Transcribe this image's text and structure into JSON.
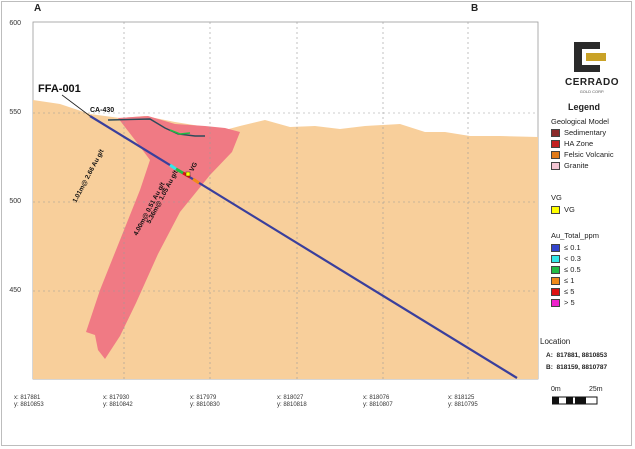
{
  "section": {
    "start_label": "A",
    "end_label": "B"
  },
  "y_axis": {
    "ticks": [
      "600",
      "550",
      "500",
      "450"
    ]
  },
  "x_axis": {
    "ticks": [
      {
        "x": "x: 817881",
        "y": "y: 8810853"
      },
      {
        "x": "x: 817930",
        "y": "y: 8810842"
      },
      {
        "x": "x: 817979",
        "y": "y: 8810830"
      },
      {
        "x": "x: 818027",
        "y": "y: 8810818"
      },
      {
        "x": "x: 818076",
        "y": "y: 8810807"
      },
      {
        "x": "x: 818125",
        "y": "y: 8810795"
      }
    ]
  },
  "drillhole": {
    "id": "FFA-001",
    "collar_label": "CA-430",
    "intercepts": [
      "1.01m@ 2.66 Au g/t",
      "4.00m@ 0.51 Au g/t",
      "5.36m@ 1.05 Au g/t"
    ],
    "vg_label": "VG"
  },
  "brand": {
    "name": "CERRADO",
    "subtitle": "GOLD CORP."
  },
  "legend": {
    "title": "Legend",
    "geological_model": {
      "title": "Geological Model",
      "items": [
        {
          "label": "Sedimentary",
          "color": "#8b2a2a"
        },
        {
          "label": "HA Zone",
          "color": "#c21f1f"
        },
        {
          "label": "Felsic Volcanic",
          "color": "#e07a1a"
        },
        {
          "label": "Granite",
          "color": "#f4c6d4"
        }
      ]
    },
    "vg": {
      "title": "VG",
      "items": [
        {
          "label": "VG",
          "color": "#ffff00"
        }
      ]
    },
    "au_total": {
      "title": "Au_Total_ppm",
      "items": [
        {
          "label": "≤ 0.1",
          "color": "#3344cc"
        },
        {
          "label": "< 0.3",
          "color": "#33e8e8"
        },
        {
          "label": "≤ 0.5",
          "color": "#22bb44"
        },
        {
          "label": "≤ 1",
          "color": "#f08a1a"
        },
        {
          "label": "≤ 5",
          "color": "#dd1111"
        },
        {
          "label": "> 5",
          "color": "#ee22cc"
        }
      ]
    }
  },
  "location": {
    "title": "Location",
    "rows": [
      {
        "key": "A:",
        "value": "817881, 8810853"
      },
      {
        "key": "B:",
        "value": "818159, 8810787"
      }
    ]
  },
  "scale_bar": {
    "start": "0m",
    "end": "25m"
  },
  "colors": {
    "felsic_volcanic": "#f8cf9b",
    "ha_zone": "#f07a84",
    "drillhole": "#3a3f9c"
  }
}
